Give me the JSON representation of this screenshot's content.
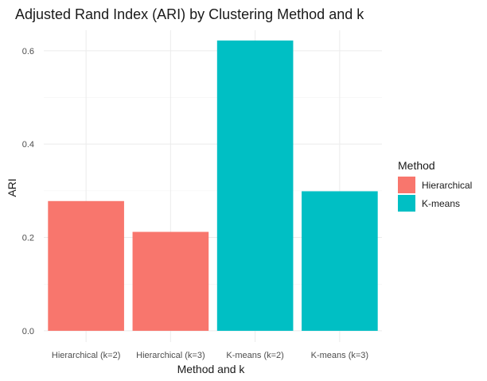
{
  "chart_data": {
    "type": "bar",
    "title": "Adjusted Rand Index (ARI) by Clustering Method and k",
    "xlabel": "Method and k",
    "ylabel": "ARI",
    "categories": [
      "Hierarchical (k=2)",
      "Hierarchical (k=3)",
      "K-means (k=2)",
      "K-means (k=3)"
    ],
    "values": [
      0.278,
      0.212,
      0.622,
      0.299
    ],
    "bar_method": [
      "Hierarchical",
      "Hierarchical",
      "K-means",
      "K-means"
    ],
    "ylim": [
      0,
      0.64
    ],
    "yticks": [
      0.0,
      0.2,
      0.4,
      0.6
    ],
    "ytick_labels": [
      "0.0",
      "0.2",
      "0.4",
      "0.6"
    ],
    "grid": true,
    "legend": {
      "title": "Method",
      "placement": "right",
      "entries": [
        {
          "label": "Hierarchical",
          "color": "#F8766D"
        },
        {
          "label": "K-means",
          "color": "#00BFC4"
        }
      ]
    }
  }
}
